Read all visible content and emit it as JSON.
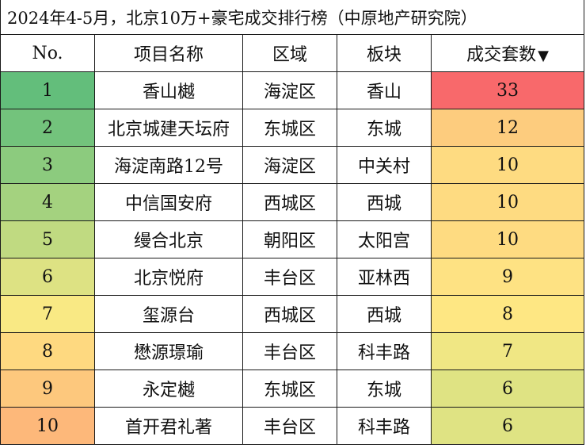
{
  "title": "2024年4-5月，北京10万+豪宅成交排行榜（中原地产研究院）",
  "headers": {
    "no": "No.",
    "name": "项目名称",
    "district": "区域",
    "block": "板块",
    "deals": "成交套数",
    "sort_indicator": "▼"
  },
  "rows": [
    {
      "no": "1",
      "name": "香山樾",
      "district": "海淀区",
      "block": "香山",
      "deals": 33,
      "no_color": "#63be7b",
      "deals_color": "#f8696b"
    },
    {
      "no": "2",
      "name": "北京城建天坛府",
      "district": "东城区",
      "block": "东城",
      "deals": 12,
      "no_color": "#73c37c",
      "deals_color": "#fdcc7e"
    },
    {
      "no": "3",
      "name": "海淀南路12号",
      "district": "海淀区",
      "block": "中关村",
      "deals": 10,
      "no_color": "#8ccb7e",
      "deals_color": "#fedb81"
    },
    {
      "no": "4",
      "name": "中信国安府",
      "district": "西城区",
      "block": "西城",
      "deals": 10,
      "no_color": "#a4d27f",
      "deals_color": "#fedb81"
    },
    {
      "no": "5",
      "name": "缦合北京",
      "district": "朝阳区",
      "block": "太阳宫",
      "deals": 10,
      "no_color": "#c0da81",
      "deals_color": "#fedb81"
    },
    {
      "no": "6",
      "name": "北京悦府",
      "district": "丰台区",
      "block": "亚林西",
      "deals": 9,
      "no_color": "#dde283",
      "deals_color": "#fee283"
    },
    {
      "no": "7",
      "name": "玺源台",
      "district": "西城区",
      "block": "西城",
      "deals": 8,
      "no_color": "#f9e984",
      "deals_color": "#fee783"
    },
    {
      "no": "8",
      "name": "懋源璟瑜",
      "district": "丰台区",
      "block": "科丰路",
      "deals": 7,
      "no_color": "#fed980",
      "deals_color": "#f0e784"
    },
    {
      "no": "9",
      "name": "永定樾",
      "district": "东城区",
      "block": "东城",
      "deals": 6,
      "no_color": "#fdc87d",
      "deals_color": "#dfe383"
    },
    {
      "no": "10",
      "name": "首开君礼著",
      "district": "丰台区",
      "block": "科丰路",
      "deals": 6,
      "no_color": "#fdb87a",
      "deals_color": "#dfe383"
    }
  ]
}
